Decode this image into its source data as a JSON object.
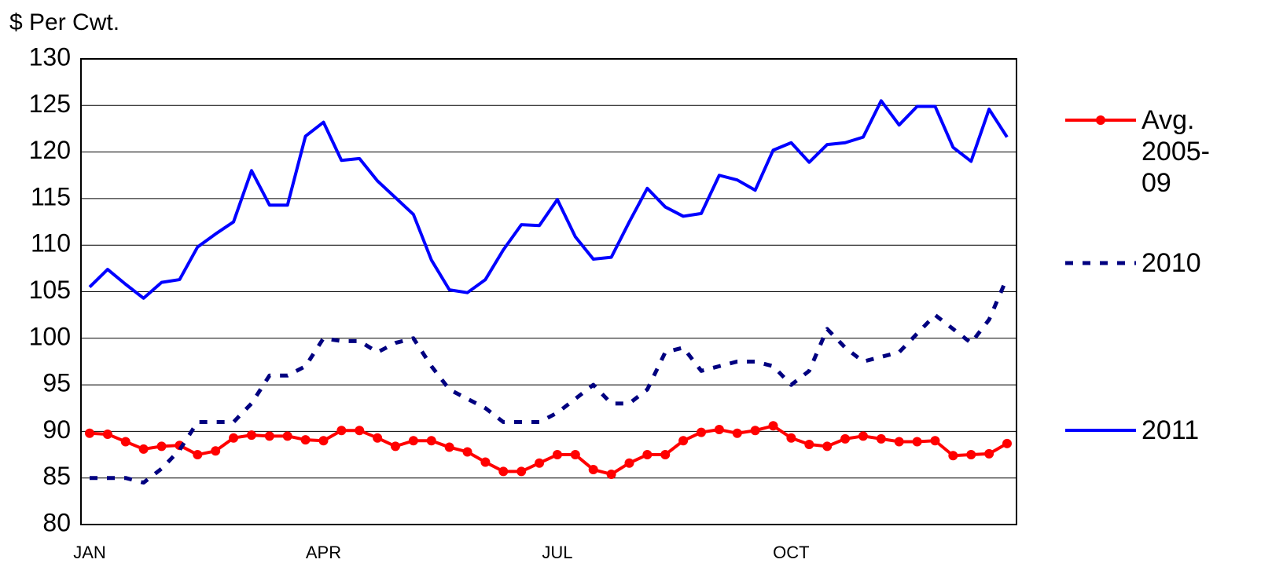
{
  "chart_data": {
    "type": "line",
    "y_label": "$ Per Cwt.",
    "categories": [
      "JAN",
      null,
      null,
      null,
      null,
      null,
      null,
      null,
      null,
      null,
      null,
      null,
      null,
      "APR",
      null,
      null,
      null,
      null,
      null,
      null,
      null,
      null,
      null,
      null,
      null,
      null,
      "JUL",
      null,
      null,
      null,
      null,
      null,
      null,
      null,
      null,
      null,
      null,
      null,
      null,
      "OCT",
      null,
      null,
      null,
      null,
      null,
      null,
      null,
      null,
      null,
      null,
      null,
      null
    ],
    "series": [
      {
        "name": "Avg. 2005-09",
        "color": "#ff0000",
        "markers": true,
        "line_style": "solid",
        "values": [
          89.8,
          89.7,
          88.9,
          88.1,
          88.4,
          88.5,
          87.5,
          87.9,
          89.3,
          89.6,
          89.5,
          89.5,
          89.1,
          89.0,
          90.1,
          90.1,
          89.3,
          88.4,
          89.0,
          89.0,
          88.3,
          87.8,
          86.7,
          85.7,
          85.7,
          86.6,
          87.5,
          87.5,
          85.9,
          85.4,
          86.6,
          87.5,
          87.5,
          89.0,
          89.9,
          90.2,
          89.8,
          90.1,
          90.6,
          89.3,
          88.6,
          88.4,
          89.2,
          89.5,
          89.2,
          88.9,
          88.9,
          89.0,
          87.4,
          87.5,
          87.6,
          88.7
        ]
      },
      {
        "name": "2010",
        "color": "#000080",
        "markers": false,
        "line_style": "dashed",
        "values": [
          85,
          85,
          85,
          84.5,
          86,
          88,
          91,
          91,
          91,
          93,
          96,
          96,
          97,
          100,
          99.7,
          99.7,
          98.5,
          99.5,
          100,
          97,
          94.5,
          93.5,
          92.5,
          91,
          91,
          91,
          92,
          93.5,
          95,
          93,
          93,
          94.5,
          98.5,
          99,
          96.5,
          97,
          97.5,
          97.5,
          97,
          95,
          96.5,
          101,
          99,
          97.5,
          98,
          98.5,
          100.5,
          102.5,
          101,
          99.5,
          102,
          106.5
        ]
      },
      {
        "name": "2011",
        "color": "#0000ff",
        "markers": false,
        "line_style": "solid",
        "values": [
          105.5,
          107.4,
          105.8,
          104.3,
          106.0,
          106.3,
          109.8,
          111.2,
          112.5,
          118.0,
          114.3,
          114.3,
          121.7,
          123.2,
          119.1,
          119.3,
          116.9,
          115.1,
          113.3,
          108.4,
          105.2,
          104.9,
          106.3,
          109.5,
          112.2,
          112.1,
          114.9,
          110.9,
          108.5,
          108.7,
          112.5,
          116.1,
          114.1,
          113.1,
          113.4,
          117.5,
          117.0,
          115.9,
          120.2,
          121.0,
          118.9,
          120.8,
          121.0,
          121.6,
          125.5,
          122.9,
          124.9,
          124.9,
          120.5,
          119.0,
          124.6,
          121.6
        ]
      }
    ],
    "ylim": [
      80,
      130
    ],
    "yticks": [
      80,
      85,
      90,
      95,
      100,
      105,
      110,
      115,
      120,
      125,
      130
    ],
    "grid": true,
    "legend": "right"
  }
}
